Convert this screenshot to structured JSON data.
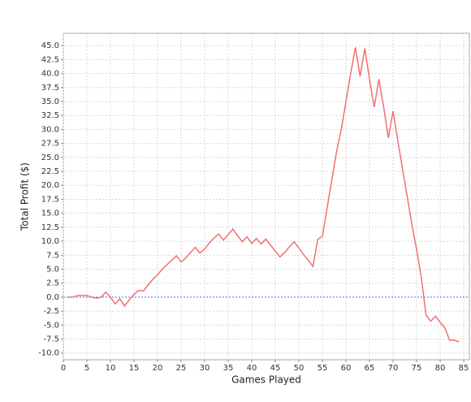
{
  "chart_data": {
    "type": "line",
    "x_label": "Games Played",
    "y_label": "Total Profit ($)",
    "x": [
      1,
      2,
      3,
      4,
      5,
      6,
      7,
      8,
      9,
      10,
      11,
      12,
      13,
      14,
      15,
      16,
      17,
      18,
      19,
      20,
      21,
      22,
      23,
      24,
      25,
      26,
      27,
      28,
      29,
      30,
      31,
      32,
      33,
      34,
      35,
      36,
      37,
      38,
      39,
      40,
      41,
      42,
      43,
      44,
      45,
      46,
      47,
      48,
      49,
      50,
      51,
      52,
      53,
      54,
      55,
      56,
      57,
      58,
      59,
      60,
      61,
      62,
      63,
      64,
      65,
      66,
      67,
      68,
      69,
      70,
      71,
      72,
      73,
      74,
      75,
      76,
      77,
      78,
      79,
      80,
      81,
      82,
      83,
      84
    ],
    "series": [
      {
        "color": "#f07070",
        "values": [
          0,
          0,
          0.3,
          0.3,
          0.3,
          0,
          -0.2,
          0,
          0.9,
          0,
          -1.2,
          -0.3,
          -1.6,
          -0.5,
          0.5,
          1.2,
          1.1,
          2.2,
          3.2,
          4.0,
          5.0,
          5.8,
          6.6,
          7.4,
          6.3,
          7.0,
          8.0,
          8.9,
          7.9,
          8.6,
          9.7,
          10.6,
          11.3,
          10.2,
          11.2,
          12.2,
          11.0,
          9.9,
          10.8,
          9.6,
          10.5,
          9.5,
          10.4,
          9.3,
          8.2,
          7.2,
          8.0,
          9.0,
          9.9,
          8.8,
          7.6,
          6.6,
          5.5,
          10.3,
          10.9,
          16,
          21,
          26,
          30,
          35,
          40,
          44.7,
          39.5,
          44.5,
          39,
          34,
          39,
          34,
          28.5,
          33.3,
          28,
          23,
          18,
          13,
          8.5,
          3.5,
          -3.2,
          -4.3,
          -3.4,
          -4.5,
          -5.5,
          -7.7,
          -7.7,
          -8.0
        ]
      }
    ],
    "reference_line": {
      "value": 0,
      "color": "#6666ff"
    },
    "xlim": [
      0,
      86.2
    ],
    "ylim": [
      -11.2,
      47.2
    ],
    "xticks": [
      0,
      5,
      10,
      15,
      20,
      25,
      30,
      35,
      40,
      45,
      50,
      55,
      60,
      65,
      70,
      75,
      80,
      85
    ],
    "yticks": [
      {
        "value": -10,
        "label": "-10.0"
      },
      {
        "value": -7.5,
        "label": "-7.5"
      },
      {
        "value": -5,
        "label": "-5.0"
      },
      {
        "value": -2.5,
        "label": "-2.5"
      },
      {
        "value": 0,
        "label": "0.0"
      },
      {
        "value": 2.5,
        "label": "2.5"
      },
      {
        "value": 5,
        "label": "5.0"
      },
      {
        "value": 7.5,
        "label": "7.5"
      },
      {
        "value": 10,
        "label": "10.0"
      },
      {
        "value": 12.5,
        "label": "12.5"
      },
      {
        "value": 15,
        "label": "15.0"
      },
      {
        "value": 17.5,
        "label": "17.5"
      },
      {
        "value": 20,
        "label": "20.0"
      },
      {
        "value": 22.5,
        "label": "22.5"
      },
      {
        "value": 25,
        "label": "25.0"
      },
      {
        "value": 27.5,
        "label": "27.5"
      },
      {
        "value": 30,
        "label": "30.0"
      },
      {
        "value": 32.5,
        "label": "32.5"
      },
      {
        "value": 35,
        "label": "35.0"
      },
      {
        "value": 37.5,
        "label": "37.5"
      },
      {
        "value": 40,
        "label": "40.0"
      },
      {
        "value": 42.5,
        "label": "42.5"
      },
      {
        "value": 45,
        "label": "45.0"
      }
    ],
    "grid": true
  }
}
